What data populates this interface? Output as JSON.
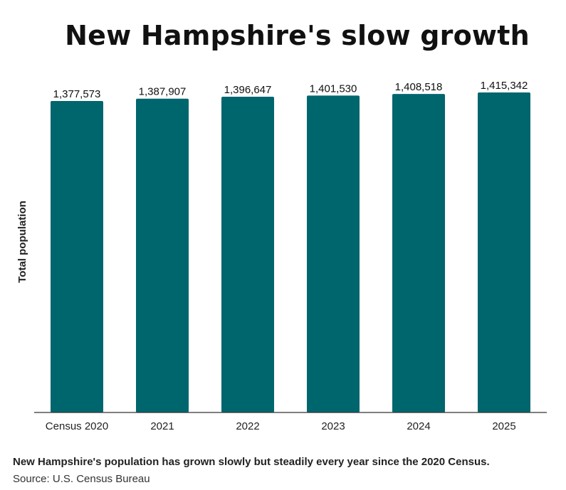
{
  "chart_data": {
    "type": "bar",
    "title": "New Hampshire's slow growth",
    "ylabel": "Total population",
    "xlabel": "",
    "categories": [
      "Census 2020",
      "2021",
      "2022",
      "2023",
      "2024",
      "2025"
    ],
    "values": [
      1377573,
      1387907,
      1396647,
      1401530,
      1408518,
      1415342
    ],
    "value_labels": [
      "1,377,573",
      "1,387,907",
      "1,396,647",
      "1,401,530",
      "1,408,518",
      "1,415,342"
    ],
    "ylim": [
      0,
      1415342
    ],
    "bar_color": "#00666e",
    "grid": false,
    "legend": "none"
  },
  "caption": "New Hampshire's population has grown slowly but steadily every year since the 2020 Census.",
  "source": "Source: U.S. Census Bureau"
}
